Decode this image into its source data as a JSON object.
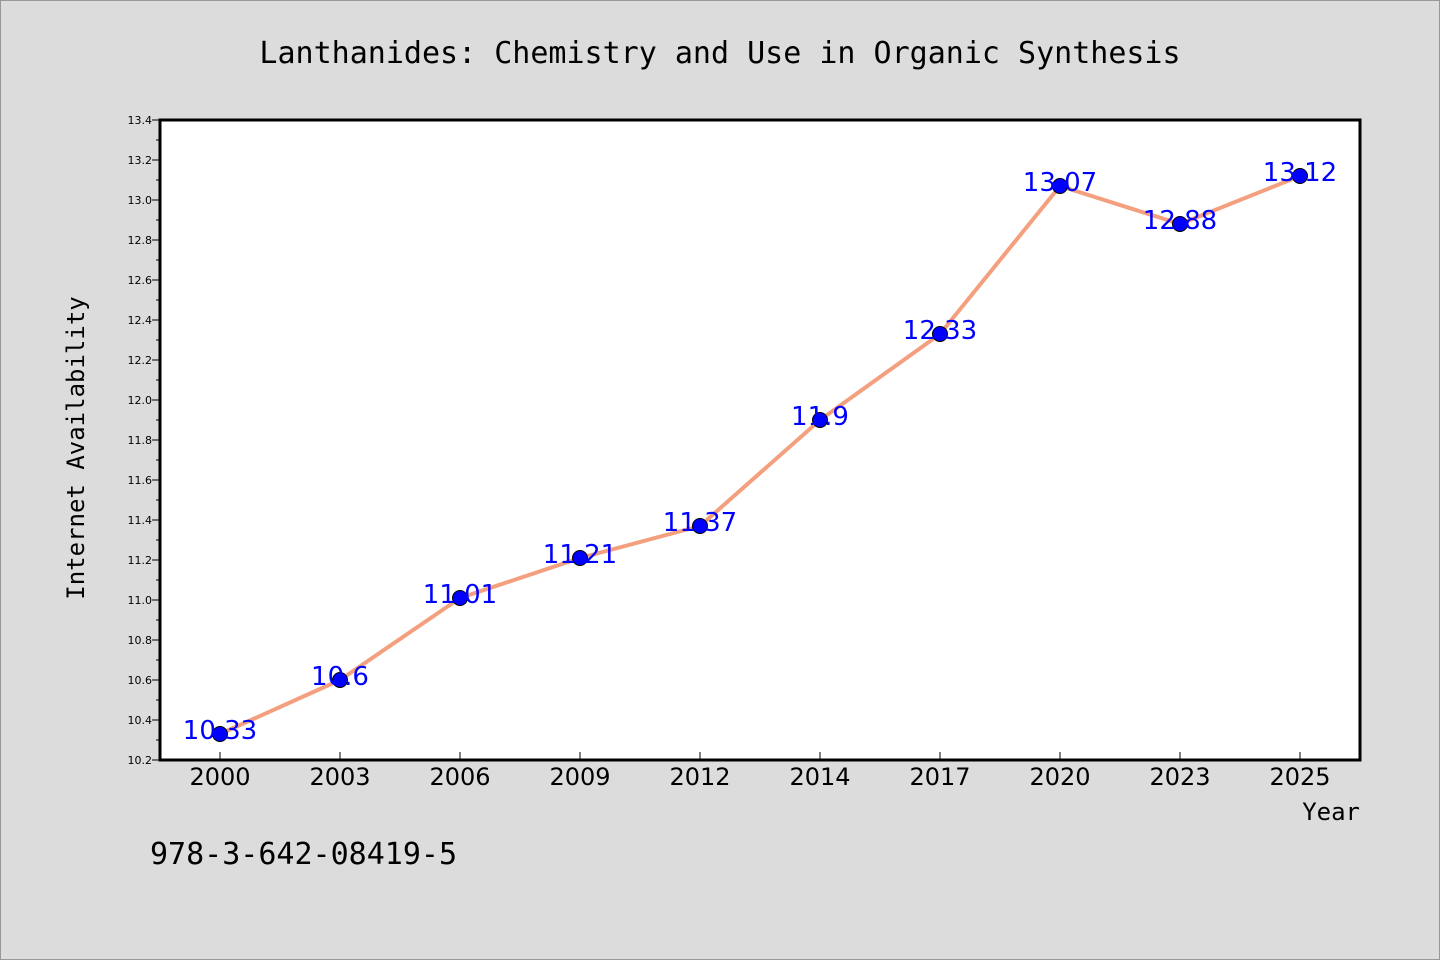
{
  "chart_data": {
    "type": "line",
    "title": "Lanthanides: Chemistry and Use in Organic Synthesis",
    "xlabel": "Year",
    "ylabel": "Internet Availability",
    "categories": [
      "2000",
      "2003",
      "2006",
      "2009",
      "2012",
      "2014",
      "2017",
      "2020",
      "2023",
      "2025"
    ],
    "series": [
      {
        "values": [
          10.33,
          10.6,
          11.01,
          11.21,
          11.37,
          11.9,
          12.33,
          13.07,
          12.88,
          13.12
        ],
        "labels": [
          "10.33",
          "10.6",
          "11.01",
          "11.21",
          "11.37",
          "11.9",
          "12.33",
          "13.07",
          "12.88",
          "13.12"
        ],
        "line_color": "#f4a07f",
        "marker_color": "#0000ff",
        "label_color": "#0000ff"
      }
    ],
    "ylim": [
      10.2,
      13.4
    ],
    "yticks": [
      "10.2",
      "10.4",
      "10.6",
      "10.8",
      "11.0",
      "11.2",
      "11.4",
      "11.6",
      "11.8",
      "12.0",
      "12.2",
      "12.4",
      "12.6",
      "12.8",
      "13.0",
      "13.2",
      "13.4"
    ],
    "grid": false,
    "legend": "none"
  },
  "footer": {
    "isbn": "978-3-642-08419-5"
  },
  "colors": {
    "background": "#dcdcdc",
    "plot_background": "#ffffff",
    "axis": "#000000"
  }
}
